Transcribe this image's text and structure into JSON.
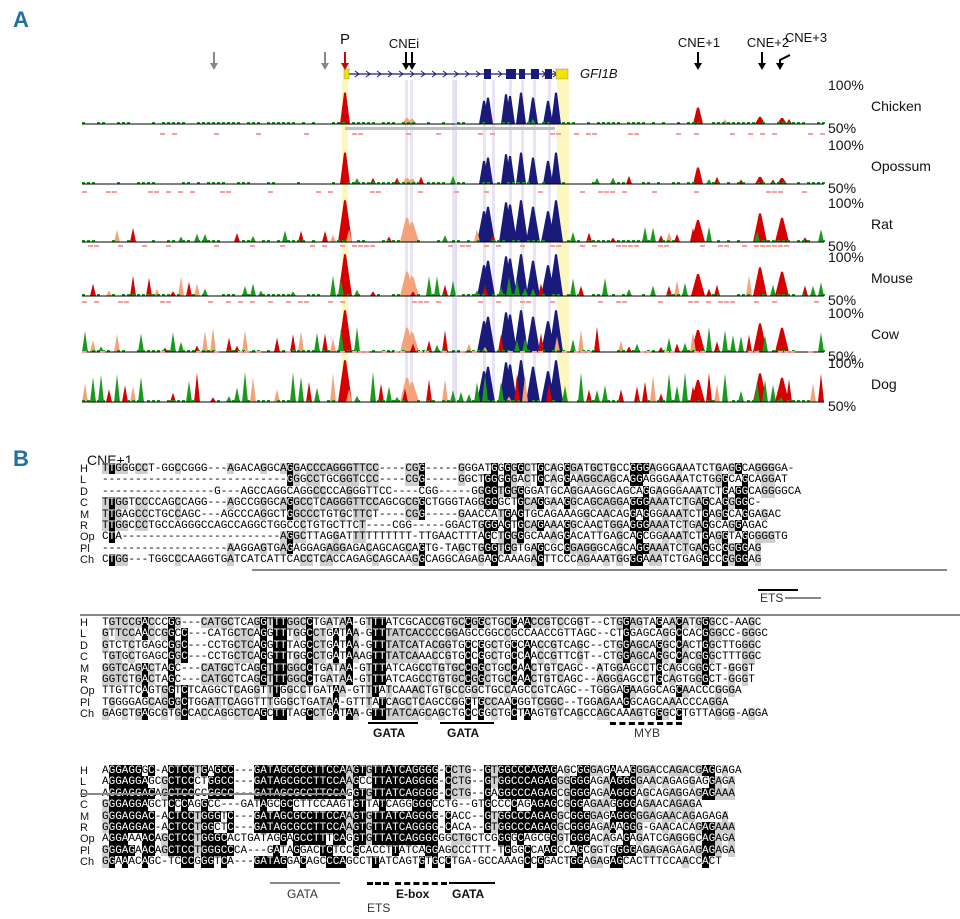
{
  "panels": {
    "a_label": "A",
    "b_label": "B"
  },
  "panel_a": {
    "gene_name": "GFI1B",
    "markers": [
      "P",
      "CNEi",
      "CNE+1",
      "CNE+2",
      "CNE+3"
    ],
    "pct_top": "100%",
    "pct_bottom": "50%",
    "species": [
      "Chicken",
      "Opossum",
      "Rat",
      "Mouse",
      "Cow",
      "Dog"
    ],
    "colors": {
      "exon": "#1a1a7a",
      "utr": "#f2e600",
      "cne_red": "#d60000",
      "intron_orange": "#f4a27a",
      "green": "#1a9a1a",
      "arrow_red": "#d40000",
      "arrow_grey": "#888888",
      "highlight_yellow": "#fcf7c0",
      "highlight_lilac": "#e9e3f6"
    }
  },
  "panel_b": {
    "cne_title": "CNE+1",
    "blocks": [
      {
        "rows": [
          {
            "label": "H",
            "seq": "TTGGGCCT-GGCCGGG---AGACAGGCAGGACCCAGGGTTCC----CGG-----GGGATGGGGGCTGCAGGGATGCTGCCGGGAGGGAAATCTGAGGCAGGGGA-"
          },
          {
            "label": "L",
            "seq": "----------------------------GGGCCTGCGGTCCC----CGG-----GGCTGGGGGACTGCAGGAAGGCAGCAGGAGGGAAATCTGGGCAGCAGGAT"
          },
          {
            "label": "D",
            "seq": "-----------------G---AGCCAGGCAGGCCCCAGGGTTCC----CGG-----GGGGTGGGGGATGCAGGAAGGCAGCAGGAGGGAAATCTGAGGCAGGGGCA"
          },
          {
            "label": "C",
            "seq": "TTGGTCCCCAGCCAGG---AGCCGGGCAGGCCTCAGGGTTCCAGCGCGGCTGGGTAGGGGGCTGCAGGAAGGCAGCAGGAGGGAAATCTGAGCAGGGGC-"
          },
          {
            "label": "M",
            "seq": "TTGAGCCCTGCCAGC---AGCCCAGGCTGGCCCTGTGCTTCT----CGG-----GAACCATGAGTGCAGAAAGGCAACAGGAGGGAAATCTGAGGCAGGAGAC"
          },
          {
            "label": "R",
            "seq": "TTGGCCCTGCCAGGGCCAGCCAGGCTGGCCCTGTGCTTCT----CGG-----GGACTGGGAGTGCAGAAAGGCAACTGGAGGGAAATCTGAGGCAGGAGAC"
          },
          {
            "label": "Op",
            "seq": "CTA------------------------AGGCTTAGGATTTTTTTTTT-TTGAACTTTAGCTGGGGCAAAGGACATTGAGCAGCGGAAATCTGAGGTAGGGGGTG"
          },
          {
            "label": "Pl",
            "seq": "-------------------AAGGAGTGAGAGGAGAGGAGACAGCAGCAGTG-TAGCTGGGTGGTGAGCGCGGAGGGCAGCAGGAAATCTGAGGCGGGGAG"
          },
          {
            "label": "Ch",
            "seq": "CTGG---TGGCCCAAGGTGATCATCATTCACCTCACCAGAGCAGCAAGGCAGGCAGAGAGCAAAGAGTTCCCAGAAATGGGGAAATCTGAGGCCGGGGAG"
          }
        ],
        "motifs": [
          "ETS"
        ]
      },
      {
        "rows": [
          {
            "label": "H",
            "seq": "TGTCCGACCCGG---CATGCTCAGGTTTGGCCTGATAA-GTTTATCGCACCGTGCCGGCTGCCAACCGTCCGGT--CTGGAGTAGAACATGGGCC-AAGC"
          },
          {
            "label": "L",
            "seq": "GTTCCAACCGGCC---CATGCTCAGGTTTGGCCTGATAA-GTTTATCACCCCGGAGCCGGCCGCCAACCGTTAGC--CTGGAGCAGGCCACGGGCC-GGGC"
          },
          {
            "label": "D",
            "seq": "GTCTCTGAGCGGC---CCTGCTCAGGTTTAGCCTGATAA-GTTTATCATACGGTGCCGGCTGCCAACCGTCAGC--CTGGAGCAGGCCACTGGCTTGGGC"
          },
          {
            "label": "C",
            "seq": "TGTGCTGAGCGGC---CCTGCTCAGGTTTGGCCTGATAAAGTTTATCAAACCGTGCCGGCTGCCAACCGTTCGT--CTGGAGCAGGCCACGGGCTTTGGC"
          },
          {
            "label": "M",
            "seq": "GGTCAGACTAGC---CATGCTCAGGTTTGGCCTGATAA-GTTTATCAGCCTGTGCCGGCTGCCAACTGTCAGC--ATGGAGCCTGCAGCGGGCT-GGGT"
          },
          {
            "label": "R",
            "seq": "GGTCTGACTAGC---CATGCTCAGGTTTGGCCTGATAA-GTTTATCAGCCTGTGCCGGCTGCCAACTGTCAGC--AGGGAGCCTGCAGTGGGCT-GGGT"
          },
          {
            "label": "Op",
            "seq": "TTGTTCAGTGGTCTCAGGCTCAGGTTTGGCCTGATAA-GTTTATCAAACTGTGCCGGCTGCCAGCCGTCAGC--TGGGAGAAGGCAGCAACCCGGGA"
          },
          {
            "label": "Pl",
            "seq": "TGGGGAGCAGGGCTGGATTCAGGTTTGGGCTGATAA-GTTTATCAGCTCAGCCGGCTGCCAACGGTCGGC--TGGAGAAGGCAGCAAACCCAGGA"
          },
          {
            "label": "Ch",
            "seq": "GAGCTGAGCGTGCCACCAGGCTCAGCTTTAGCCTGATAA-GTTTATCAGCAGCTGCCGGCTGCTAAGTGTCAGCCAGCAAAGTGGGCCTGTTAGGG-AGGA"
          }
        ],
        "motifs": [
          "GATA",
          "GATA",
          "MYB"
        ]
      },
      {
        "rows": [
          {
            "label": "H",
            "seq": "AGGAGGGC-ACTCCTGAGCC---GATAGCGCCTTCCAAGTGTTATCAGGGG-CCTG--GTGGCCCAGAGAGCGGGAGAAAGGGACCAGACGAGGAGA"
          },
          {
            "label": "L",
            "seq": "AGGAGGAGCGCTCCCTGGCC---GATAGCGCCTTCCAAGCCTTATCAGGGG-CCTG--GTGGCCCAGAGGGGGGAGAAGGGGAACAGAGGAGGAGA"
          },
          {
            "label": "D",
            "seq": "AGGAGGACAGCTCCCCGGCC---GATAGCGCCTTCCAGGTGTTATCAGGGG-CCTG--GAGGCCCAGAGCGGGGAGAAGGGAGCAGAGGAGAGAAA"
          },
          {
            "label": "C",
            "seq": "GGGAGGAGCTCCCAGGCC---GATAGCGCCTTCCAAGTGTTATCAGGGGGCCTG--GTGCCCCAGAGAGCGGGAGAAGGGGAGAACAGAGA"
          },
          {
            "label": "M",
            "seq": "GGGAGGAC-ACTCCTGGGTC---GATAGCGCCTTCCAAGTGTTATCAGGGG-CACC--GTGGCCCAGAGGCGGGGAGAGGGGGAGAACAGAGAGA"
          },
          {
            "label": "R",
            "seq": "GGGAGGAC-ACTCCTGGCTC---GATAGCGCCTTCCAAGTGTTATCAGGGG-CACA--GTGGCCCAGAGGCGGGAGAAAGGG-GAACACAGAGAAA"
          },
          {
            "label": "Op",
            "seq": "AGGAAAACAGCTCCTGGGCACTGATAGGAGCCTTTCAGGTGTTATCAGGGGGGCTGCTCGGGGCAGCGGGTGGGACAGAGAGATCGAGGGCAGAGA"
          },
          {
            "label": "Pl",
            "seq": "GGGAGAACAGCTCCTGGGCCCA---GATAGGACTCTCCGCACCTTATCAGGAGCCCTTT-TGGGCCAAGCCAGCGGTGGGGAGAGAGAGAGAGAGA"
          },
          {
            "label": "Ch",
            "seq": "GGAAACAGC-TCCCGGGTCA---GATAGGACAGCCCAGCCTTATCAGTGTGCCTGA-GCCAAAGCCGGACTGGAGAGAGCACTTTCCAACCACT"
          }
        ],
        "motifs": [
          "GATA",
          "ETS",
          "E-box",
          "GATA"
        ]
      }
    ]
  }
}
